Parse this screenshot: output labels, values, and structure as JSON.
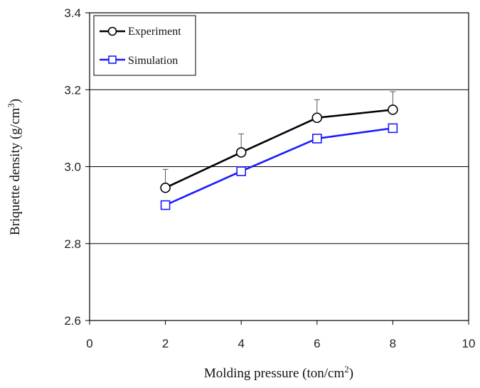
{
  "chart_data": {
    "type": "line",
    "xlabel": "Molding pressure (ton/cm",
    "xlabel_sup": "2",
    "xlabel_end": ")",
    "ylabel": "Briquette density (g/cm",
    "ylabel_sup": "3",
    "ylabel_end": ")",
    "xlim": [
      0,
      10
    ],
    "ylim": [
      2.6,
      3.4
    ],
    "xticks": [
      "0",
      "2",
      "4",
      "6",
      "8",
      "10"
    ],
    "yticks": [
      "2.6",
      "2.8",
      "3.0",
      "3.2",
      "3.4"
    ],
    "grid": "horizontal",
    "legend_position": "top-left",
    "series": [
      {
        "name": "Experiment",
        "color": "#000000",
        "marker": "circle",
        "x": [
          2,
          4,
          6,
          8
        ],
        "y": [
          2.945,
          3.037,
          3.127,
          3.148
        ],
        "error": [
          0.048,
          0.048,
          0.047,
          0.047
        ]
      },
      {
        "name": "Simulation",
        "color": "#1a1aff",
        "marker": "square",
        "x": [
          2,
          4,
          6,
          8
        ],
        "y": [
          2.9,
          2.988,
          3.073,
          3.1
        ]
      }
    ]
  }
}
